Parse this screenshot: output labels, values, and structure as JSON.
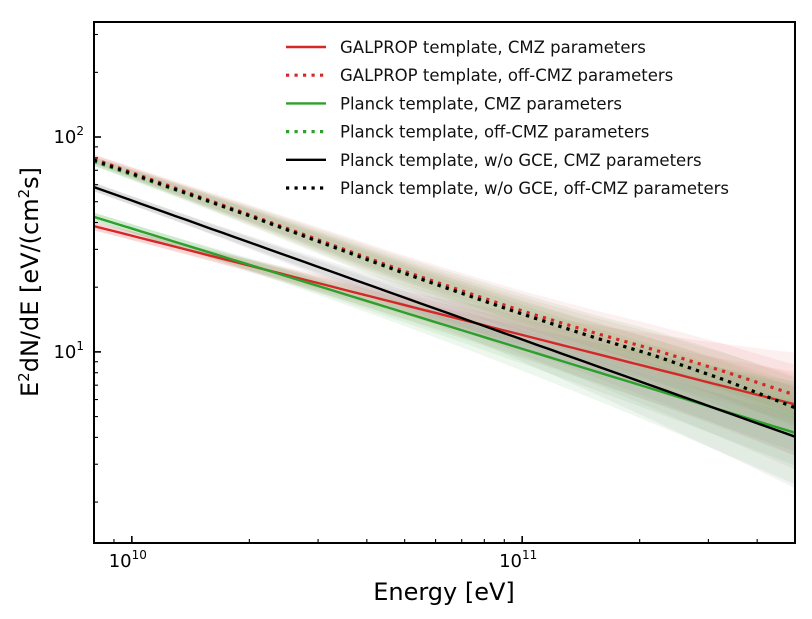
{
  "chart_data": {
    "type": "line",
    "title": "",
    "xlabel": "Energy [eV]",
    "ylabel_parts": {
      "base": "E",
      "sup": "2",
      "mid": "dN/dE [eV/(cm",
      "sup2": "2",
      "end": "s]"
    },
    "xscale": "log",
    "yscale": "log",
    "xlim": [
      8000000000.0,
      500000000000.0
    ],
    "ylim": [
      1.29,
      343
    ],
    "x_ticks": [
      {
        "value": 10000000000.0,
        "base": "10",
        "exp": "10"
      },
      {
        "value": 100000000000.0,
        "base": "10",
        "exp": "11"
      }
    ],
    "y_ticks": [
      {
        "value": 10,
        "base": "10",
        "exp": "1"
      },
      {
        "value": 100,
        "base": "10",
        "exp": "2"
      }
    ],
    "grid": false,
    "legend_position": "top-right",
    "series": [
      {
        "name": "GALPROP template, CMZ parameters",
        "color": "#d62728",
        "style": "solid",
        "x": [
          8000000000.0,
          500000000000.0
        ],
        "y": [
          38.5,
          5.7
        ],
        "band": true
      },
      {
        "name": "GALPROP template, off-CMZ parameters",
        "color": "#d62728",
        "style": "dotted",
        "x": [
          8000000000.0,
          20000000000.0,
          49000000000.0,
          78000000000.0,
          100000000000.0,
          150000000000.0,
          215000000000.0,
          330000000000.0,
          500000000000.0
        ],
        "y": [
          79,
          43.5,
          24,
          18,
          15.5,
          12.4,
          10.3,
          8.1,
          6.3
        ],
        "band": true
      },
      {
        "name": "Planck template, CMZ parameters",
        "color": "#2ca02c",
        "style": "solid",
        "x": [
          8000000000.0,
          500000000000.0
        ],
        "y": [
          42.5,
          4.2
        ],
        "band": true
      },
      {
        "name": "Planck template, off-CMZ parameters",
        "color": "#2ca02c",
        "style": "dotted",
        "x": [
          8000000000.0,
          20000000000.0,
          49000000000.0,
          78000000000.0,
          100000000000.0,
          150000000000.0,
          215000000000.0,
          330000000000.0,
          500000000000.0
        ],
        "y": [
          77,
          43,
          23.5,
          17.5,
          15.0,
          11.8,
          9.7,
          7.4,
          5.5
        ],
        "band": true
      },
      {
        "name": "Planck template, w/o GCE, CMZ parameters",
        "color": "#000000",
        "style": "solid",
        "x": [
          8000000000.0,
          500000000000.0
        ],
        "y": [
          58.5,
          4.03
        ],
        "band": true
      },
      {
        "name": "Planck template, w/o GCE, off-CMZ parameters",
        "color": "#000000",
        "style": "dotted",
        "x": [
          8000000000.0,
          20000000000.0,
          49000000000.0,
          78000000000.0,
          100000000000.0,
          150000000000.0,
          215000000000.0,
          330000000000.0,
          500000000000.0
        ],
        "y": [
          78,
          43,
          23.5,
          17.5,
          15.0,
          11.8,
          9.7,
          7.4,
          5.5
        ],
        "band": false
      }
    ]
  }
}
